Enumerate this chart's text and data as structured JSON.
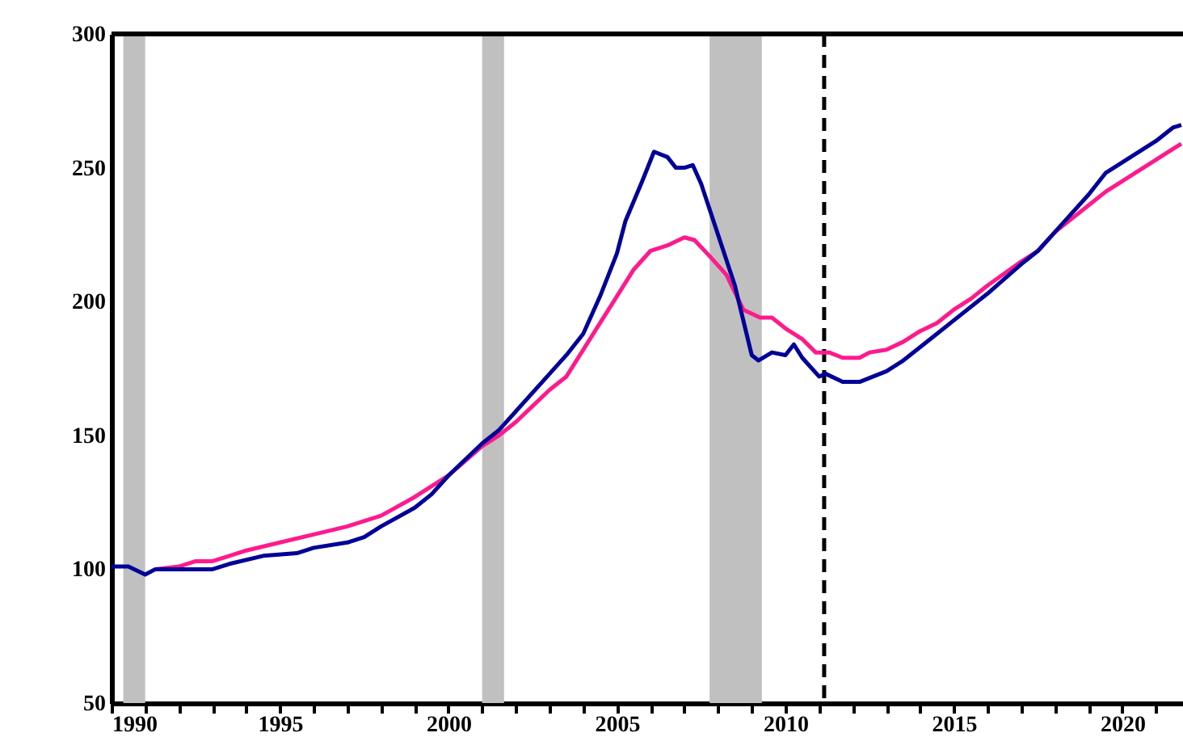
{
  "chart_data": {
    "type": "line",
    "xlim": [
      1990,
      2021.8
    ],
    "ylim": [
      50,
      300
    ],
    "xticks": [
      1990,
      {
        "value": 1991,
        "label": null
      },
      {
        "value": 1992,
        "label": null
      },
      {
        "value": 1993,
        "label": null
      },
      {
        "value": 1994,
        "label": null
      },
      1995,
      {
        "value": 1996,
        "label": null
      },
      {
        "value": 1997,
        "label": null
      },
      {
        "value": 1998,
        "label": null
      },
      {
        "value": 1999,
        "label": null
      },
      2000,
      {
        "value": 2001,
        "label": null
      },
      {
        "value": 2002,
        "label": null
      },
      {
        "value": 2003,
        "label": null
      },
      {
        "value": 2004,
        "label": null
      },
      2005,
      {
        "value": 2006,
        "label": null
      },
      {
        "value": 2007,
        "label": null
      },
      {
        "value": 2008,
        "label": null
      },
      {
        "value": 2009,
        "label": null
      },
      2010,
      {
        "value": 2011,
        "label": null
      },
      {
        "value": 2012,
        "label": null
      },
      {
        "value": 2013,
        "label": null
      },
      {
        "value": 2014,
        "label": null
      },
      2015,
      {
        "value": 2016,
        "label": null
      },
      {
        "value": 2017,
        "label": null
      },
      {
        "value": 2018,
        "label": null
      },
      {
        "value": 2019,
        "label": null
      },
      2020,
      {
        "value": 2021,
        "label": null
      }
    ],
    "yticks": [
      50,
      100,
      150,
      200,
      250,
      300
    ],
    "grid": false,
    "legend": false,
    "line_style": "solid",
    "bands": [
      {
        "axis": "x",
        "from": 1990.35,
        "to": 1991.0,
        "color": "#c0c0c0"
      },
      {
        "axis": "x",
        "from": 2001.0,
        "to": 2001.65,
        "color": "#c0c0c0"
      },
      {
        "axis": "x",
        "from": 2007.75,
        "to": 2009.3,
        "color": "#c0c0c0"
      }
    ],
    "ref_lines": [
      {
        "axis": "x",
        "value": 2011.15,
        "color": "#000000",
        "line_style": "dashed"
      }
    ],
    "series": [
      {
        "color": "#ff1a8c",
        "x": [
          1991.3,
          1992,
          1992.5,
          1993,
          1993.5,
          1994,
          1995,
          1996,
          1997,
          1998,
          1999,
          2000,
          2001,
          2001.5,
          2002,
          2003,
          2003.5,
          2004,
          2004.5,
          2005,
          2005.5,
          2006,
          2006.5,
          2007,
          2007.3,
          2007.75,
          2008.25,
          2008.75,
          2009.25,
          2009.6,
          2010,
          2010.5,
          2010.9,
          2011.3,
          2011.7,
          2012.2,
          2012.5,
          2013,
          2013.5,
          2014,
          2014.5,
          2015,
          2015.5,
          2016,
          2017,
          2017.5,
          2018,
          2019,
          2019.5,
          2020,
          2020.5,
          2021,
          2021.5,
          2021.75
        ],
        "values": [
          100,
          101,
          103,
          103,
          105,
          107,
          110,
          113,
          116,
          120,
          127,
          135,
          146,
          150,
          155,
          167,
          172,
          182,
          192,
          202,
          212,
          219,
          221,
          224,
          223,
          217,
          210,
          197,
          194,
          194,
          190,
          186,
          181,
          181,
          179,
          179,
          181,
          182,
          185,
          189,
          192,
          197,
          201,
          206,
          215,
          219,
          226,
          236,
          241,
          245,
          249,
          253,
          257,
          259
        ]
      },
      {
        "color": "#000099",
        "x": [
          1990,
          1990.5,
          1991,
          1991.3,
          1993,
          1993.5,
          1994.5,
          1995.5,
          1996,
          1997,
          1997.5,
          1998,
          1999,
          1999.5,
          2000,
          2001,
          2001.5,
          2002,
          2003,
          2003.5,
          2004,
          2004.5,
          2005,
          2005.25,
          2005.75,
          2006.1,
          2006.5,
          2006.75,
          2007,
          2007.25,
          2007.5,
          2008,
          2008.5,
          2009,
          2009.2,
          2009.6,
          2010,
          2010.25,
          2010.5,
          2011,
          2011.2,
          2011.7,
          2012.2,
          2013,
          2013.5,
          2014,
          2014.5,
          2015,
          2016,
          2017,
          2017.5,
          2018,
          2019,
          2019.5,
          2020,
          2020.5,
          2021,
          2021.5,
          2021.75
        ],
        "values": [
          101,
          101,
          98,
          100,
          100,
          102,
          105,
          106,
          108,
          110,
          112,
          116,
          123,
          128,
          135,
          147,
          152,
          159,
          173,
          180,
          188,
          202,
          218,
          230,
          245,
          256,
          254,
          250,
          250,
          251,
          244,
          225,
          206,
          180,
          178,
          181,
          180,
          184,
          179,
          172,
          173,
          170,
          170,
          174,
          178,
          183,
          188,
          193,
          203,
          214,
          219,
          226,
          240,
          248,
          252,
          256,
          260,
          265,
          266
        ]
      }
    ]
  }
}
